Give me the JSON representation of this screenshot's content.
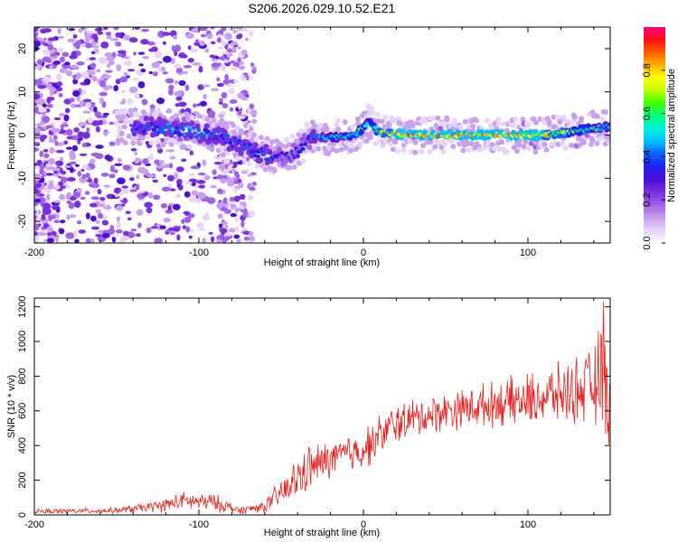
{
  "chart_data": [
    {
      "type": "heatmap",
      "title": "S206.2026.029.10.52.E21",
      "xlabel": "Height of straight line (km)",
      "ylabel": "Frequency (Hz)",
      "xlim": [
        -200,
        150
      ],
      "ylim": [
        -25,
        25
      ],
      "xticks": [
        -200,
        -100,
        0,
        100
      ],
      "xtick_labels": [
        "-200",
        "-100",
        "0",
        "100"
      ],
      "yticks": [
        -20,
        -10,
        0,
        10,
        20
      ],
      "ytick_labels": [
        "-20",
        "-10",
        "0",
        "10",
        "20"
      ],
      "colorbar": {
        "label": "Normalized spectral amplitude",
        "range": [
          0,
          1
        ],
        "ticks": [
          0,
          0.2,
          0.4,
          0.6,
          0.8
        ],
        "tick_labels": [
          "0.0",
          "0.2",
          "0.4",
          "0.6",
          "0.8"
        ],
        "colors": [
          "#ffffff",
          "#e8d4f8",
          "#c9a0f0",
          "#a060e8",
          "#7a2ee0",
          "#4b10d8",
          "#1e20f0",
          "#0a60ff",
          "#00c0ff",
          "#00f0e0",
          "#00ff80",
          "#40ff00",
          "#c0ff00",
          "#ffff00",
          "#ffb000",
          "#ff6000",
          "#ff1010",
          "#ff0080"
        ]
      },
      "ridge": [
        {
          "x": -130,
          "y": 2,
          "amp": 0.4
        },
        {
          "x": -115,
          "y": 1.5,
          "amp": 0.45
        },
        {
          "x": -100,
          "y": 0.5,
          "amp": 0.45
        },
        {
          "x": -90,
          "y": 0,
          "amp": 0.4
        },
        {
          "x": -80,
          "y": -1.5,
          "amp": 0.4
        },
        {
          "x": -70,
          "y": -3,
          "amp": 0.4
        },
        {
          "x": -60,
          "y": -4.5,
          "amp": 0.4
        },
        {
          "x": -50,
          "y": -5,
          "amp": 0.35
        },
        {
          "x": -40,
          "y": -4,
          "amp": 0.35
        },
        {
          "x": -35,
          "y": -1,
          "amp": 0.35
        },
        {
          "x": -25,
          "y": -0.5,
          "amp": 0.45
        },
        {
          "x": -15,
          "y": -0.5,
          "amp": 0.55
        },
        {
          "x": -5,
          "y": 0,
          "amp": 0.65
        },
        {
          "x": 3,
          "y": 3,
          "amp": 0.55
        },
        {
          "x": 10,
          "y": 0.5,
          "amp": 0.75
        },
        {
          "x": 30,
          "y": 0,
          "amp": 0.9
        },
        {
          "x": 60,
          "y": 0,
          "amp": 0.88
        },
        {
          "x": 90,
          "y": 0,
          "amp": 0.85
        },
        {
          "x": 110,
          "y": 0,
          "amp": 0.8
        },
        {
          "x": 130,
          "y": 1,
          "amp": 0.65
        },
        {
          "x": 150,
          "y": 2,
          "amp": 0.5
        }
      ]
    },
    {
      "type": "line",
      "xlabel": "Height of straight line (km)",
      "ylabel": "SNR (10 * v/v)",
      "xlim": [
        -200,
        150
      ],
      "ylim": [
        0,
        1250
      ],
      "xticks": [
        -200,
        -100,
        0,
        100
      ],
      "xtick_labels": [
        "-200",
        "-100",
        "0",
        "100"
      ],
      "yticks": [
        0,
        200,
        400,
        600,
        800,
        1000,
        1200
      ],
      "ytick_labels": [
        "0",
        "200",
        "400",
        "600",
        "800",
        "1000",
        "1200"
      ],
      "series": [
        {
          "name": "SNR",
          "color": "#e8201c",
          "envelope": [
            {
              "x": -200,
              "y": 20,
              "spread": 15
            },
            {
              "x": -150,
              "y": 25,
              "spread": 20
            },
            {
              "x": -125,
              "y": 50,
              "spread": 40
            },
            {
              "x": -110,
              "y": 80,
              "spread": 60
            },
            {
              "x": -90,
              "y": 70,
              "spread": 60
            },
            {
              "x": -75,
              "y": 25,
              "spread": 25
            },
            {
              "x": -60,
              "y": 50,
              "spread": 40
            },
            {
              "x": -45,
              "y": 160,
              "spread": 130
            },
            {
              "x": -35,
              "y": 260,
              "spread": 160
            },
            {
              "x": -20,
              "y": 320,
              "spread": 130
            },
            {
              "x": 0,
              "y": 380,
              "spread": 140
            },
            {
              "x": 20,
              "y": 530,
              "spread": 140
            },
            {
              "x": 50,
              "y": 600,
              "spread": 130
            },
            {
              "x": 80,
              "y": 640,
              "spread": 150
            },
            {
              "x": 100,
              "y": 660,
              "spread": 180
            },
            {
              "x": 120,
              "y": 700,
              "spread": 200
            },
            {
              "x": 140,
              "y": 740,
              "spread": 260
            },
            {
              "x": 145,
              "y": 800,
              "spread": 400
            },
            {
              "x": 150,
              "y": 650,
              "spread": 350
            }
          ],
          "peak": {
            "x": 146,
            "y": 1230
          }
        }
      ]
    }
  ]
}
